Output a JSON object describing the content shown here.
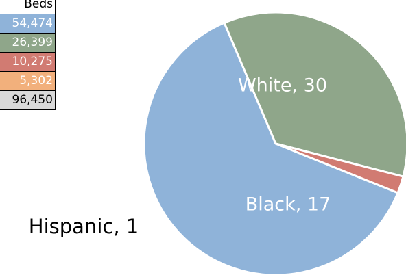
{
  "table": {
    "header": "Beds",
    "rows": [
      {
        "value": "54,474",
        "color": "#8fb3d9"
      },
      {
        "value": "26,399",
        "color": "#8fa68a"
      },
      {
        "value": "10,275",
        "color": "#d17b72"
      },
      {
        "value": "5,302",
        "color": "#f2b07c"
      },
      {
        "value": "96,450",
        "color": "#d9d9d9"
      }
    ]
  },
  "chart_data": {
    "type": "pie",
    "slices": [
      {
        "name": "White",
        "value": 30,
        "label": "White, 30",
        "color": "#8fb3d9"
      },
      {
        "name": "Black",
        "value": 17,
        "label": "Black, 17",
        "color": "#8fa68a"
      },
      {
        "name": "Hispanic",
        "value": 1,
        "label": "Hispanic, 1",
        "color": "#d17b72"
      }
    ]
  }
}
